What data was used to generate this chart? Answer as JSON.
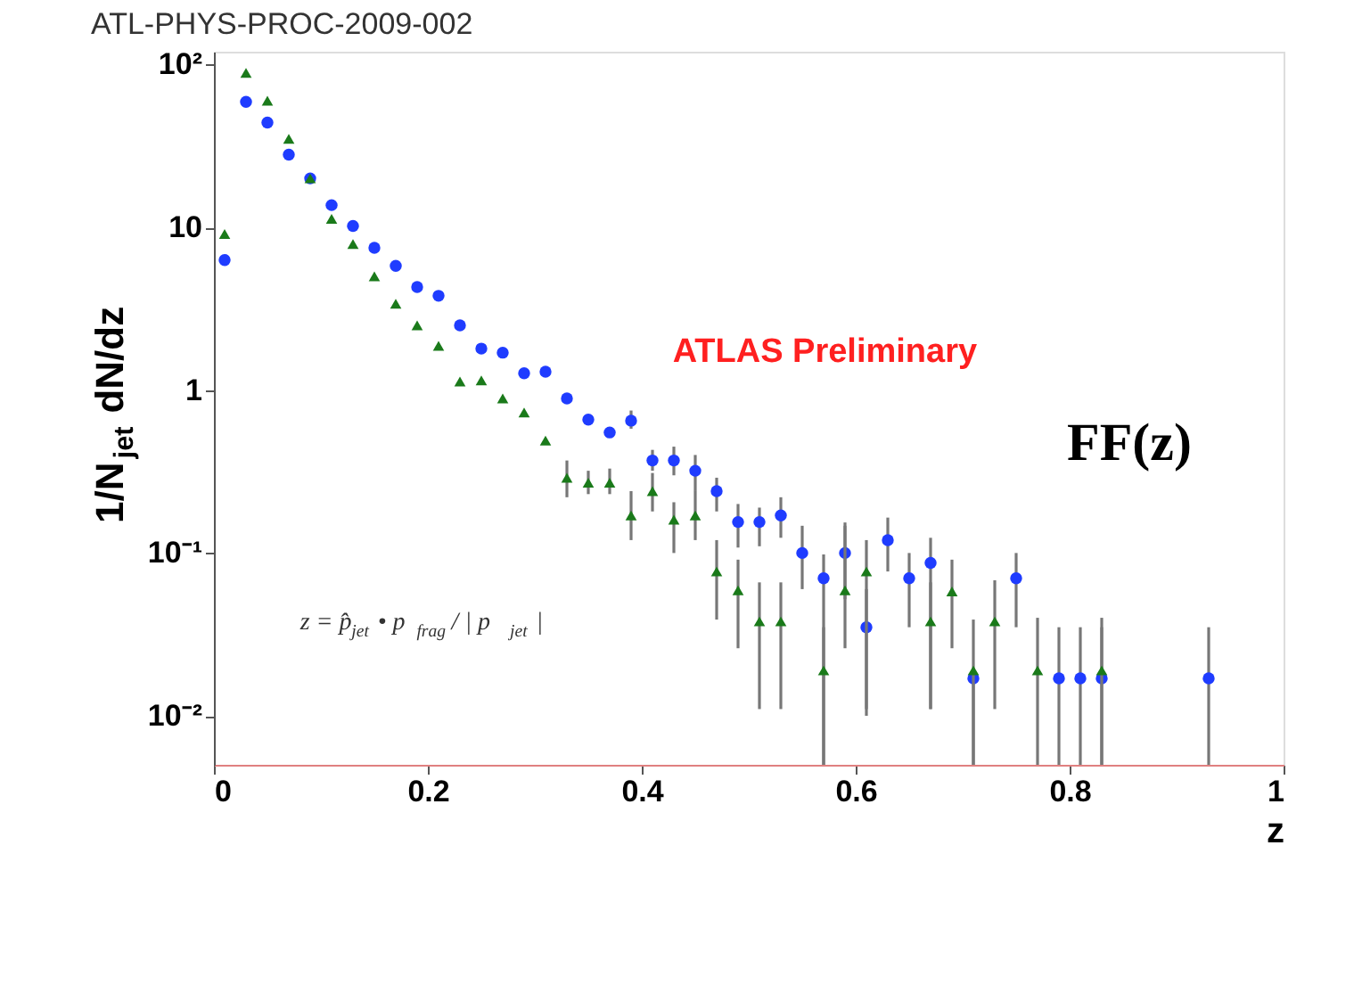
{
  "chart_data": {
    "type": "scatter",
    "title": "ATL-PHYS-PROC-2009-002",
    "xlabel": "z",
    "ylabel": "1/N$_{jet}$ dN/dz",
    "annotations": [
      "ATLAS Preliminary",
      "z = p̂$_{jet}$ • p⃗$_{frag}$ / | p⃗$_{jet}$ |",
      "FF(z)"
    ],
    "log": "y",
    "grid": false,
    "xlim": [
      0,
      1
    ],
    "xticks": [
      0,
      0.2,
      0.4,
      0.6,
      0.8,
      1
    ],
    "ylim": [
      0.005,
      120
    ],
    "yticks": [
      {
        "value": 0.01,
        "label": "10⁻²"
      },
      {
        "value": 0.1,
        "label": "10⁻¹"
      },
      1,
      10,
      {
        "value": 100,
        "label": "10²"
      }
    ],
    "series": [
      {
        "color": "#1a7a1a",
        "marker": "triangle",
        "x": [
          0.01,
          0.03,
          0.05,
          0.07,
          0.09,
          0.11,
          0.13,
          0.15,
          0.17,
          0.19,
          0.21,
          0.23,
          0.25,
          0.27,
          0.29,
          0.31,
          0.33,
          0.35,
          0.37,
          0.39,
          0.41,
          0.43,
          0.45,
          0.47,
          0.49,
          0.51,
          0.53,
          0.57,
          0.59,
          0.61,
          0.67,
          0.69,
          0.71,
          0.73,
          0.77,
          0.83
        ],
        "values": [
          9.1,
          89,
          60,
          35,
          20,
          11.3,
          7.9,
          5.0,
          3.4,
          2.5,
          1.87,
          1.13,
          1.15,
          0.89,
          0.73,
          0.49,
          0.29,
          0.27,
          0.27,
          0.17,
          0.24,
          0.16,
          0.17,
          0.077,
          0.059,
          0.038,
          0.038,
          0.019,
          0.059,
          0.077,
          0.038,
          0.058,
          0.019,
          0.038,
          0.019,
          0.019
        ],
        "errors": [
          null,
          null,
          null,
          null,
          null,
          null,
          null,
          null,
          null,
          null,
          null,
          null,
          null,
          null,
          null,
          null,
          [
            0.22,
            0.37
          ],
          [
            0.23,
            0.32
          ],
          [
            0.23,
            0.33
          ],
          [
            0.12,
            0.24
          ],
          [
            0.18,
            0.31
          ],
          [
            0.1,
            0.205
          ],
          [
            0.12,
            0.24
          ],
          [
            0.039,
            0.12
          ],
          [
            0.026,
            0.091
          ],
          [
            0.011,
            0.066
          ],
          [
            0.011,
            0.066
          ],
          [
            0.005,
            0.035
          ],
          [
            0.026,
            0.147
          ],
          [
            0.011,
            0.12
          ],
          [
            0.011,
            0.066
          ],
          [
            0.026,
            0.091
          ],
          [
            0.005,
            0.039
          ],
          [
            0.011,
            0.068
          ],
          [
            0.005,
            0.04
          ],
          [
            0.005,
            0.04
          ]
        ]
      },
      {
        "color": "#1f3cff",
        "marker": "circle",
        "x": [
          0.01,
          0.03,
          0.05,
          0.07,
          0.09,
          0.11,
          0.13,
          0.15,
          0.17,
          0.19,
          0.21,
          0.23,
          0.25,
          0.27,
          0.29,
          0.31,
          0.33,
          0.35,
          0.37,
          0.39,
          0.41,
          0.43,
          0.45,
          0.47,
          0.49,
          0.51,
          0.53,
          0.55,
          0.57,
          0.59,
          0.61,
          0.63,
          0.65,
          0.67,
          0.71,
          0.75,
          0.79,
          0.81,
          0.83,
          0.93
        ],
        "values": [
          6.3,
          59,
          44,
          28,
          20,
          13.7,
          10.2,
          7.5,
          5.8,
          4.3,
          3.8,
          2.5,
          1.8,
          1.7,
          1.27,
          1.3,
          0.89,
          0.66,
          0.55,
          0.65,
          0.37,
          0.37,
          0.32,
          0.24,
          0.155,
          0.155,
          0.17,
          0.1,
          0.07,
          0.1,
          0.035,
          0.12,
          0.07,
          0.087,
          0.017,
          0.07,
          0.017,
          0.017,
          0.017,
          0.017
        ],
        "errors": [
          null,
          null,
          null,
          null,
          null,
          null,
          null,
          null,
          null,
          null,
          null,
          null,
          null,
          null,
          null,
          null,
          null,
          null,
          null,
          [
            0.58,
            0.75
          ],
          [
            0.32,
            0.43
          ],
          [
            0.3,
            0.45
          ],
          [
            0.24,
            0.4
          ],
          [
            0.18,
            0.29
          ],
          [
            0.108,
            0.2
          ],
          [
            0.11,
            0.19
          ],
          [
            0.124,
            0.22
          ],
          [
            0.06,
            0.147
          ],
          [
            0.005,
            0.098
          ],
          [
            0.052,
            0.154
          ],
          [
            0.01,
            0.06
          ],
          [
            0.077,
            0.165
          ],
          [
            0.035,
            0.1
          ],
          [
            0.011,
            0.124
          ],
          [
            0.005,
            0.019
          ],
          [
            0.035,
            0.1
          ],
          [
            0.005,
            0.035
          ],
          [
            0.005,
            0.035
          ],
          [
            0.005,
            0.035
          ],
          [
            0.005,
            0.035
          ]
        ]
      }
    ]
  }
}
